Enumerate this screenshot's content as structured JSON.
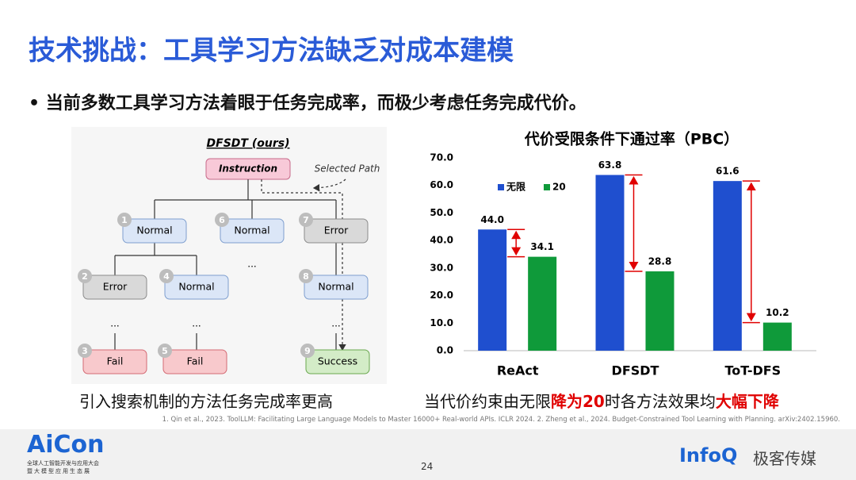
{
  "title": "技术挑战：工具学习方法缺乏对成本建模",
  "bullet": "当前多数工具学习方法着眼于任务完成率，而极少考虑任务完成代价。",
  "diagram": {
    "title": "DFSDT (ours)",
    "instruction": "Instruction",
    "selected_path": "Selected Path",
    "ellipsis": "...",
    "nodes": [
      {
        "number": 1,
        "label": "Normal"
      },
      {
        "number": 6,
        "label": "Normal"
      },
      {
        "number": 7,
        "label": "Error"
      },
      {
        "number": 2,
        "label": "Error"
      },
      {
        "number": 4,
        "label": "Normal"
      },
      {
        "number": 8,
        "label": "Normal"
      },
      {
        "number": 3,
        "label": "Fail"
      },
      {
        "number": 5,
        "label": "Fail"
      },
      {
        "number": 9,
        "label": "Success"
      }
    ]
  },
  "caption_left": "引入搜索机制的方法任务完成率更高",
  "chart_data": {
    "type": "bar",
    "title": "代价受限条件下通过率（PBC）",
    "categories": [
      "ReAct",
      "DFSDT",
      "ToT-DFS"
    ],
    "series": [
      {
        "name": "无限",
        "color": "#1f4fcf",
        "values": [
          44.0,
          63.8,
          61.6
        ],
        "value_labels": [
          "44.0",
          "63.8",
          "61.6"
        ]
      },
      {
        "name": "20",
        "color": "#0f9a3a",
        "values": [
          34.1,
          28.8,
          10.2
        ]
      }
    ],
    "ylim": [
      0,
      70
    ],
    "yticks": [
      {
        "value": 0,
        "label": "0.0"
      },
      {
        "value": 10,
        "label": "10.0"
      },
      {
        "value": 20,
        "label": "20.0"
      },
      {
        "value": 30,
        "label": "30.0"
      },
      {
        "value": 40,
        "label": "40.0"
      },
      {
        "value": 50,
        "label": "50.0"
      },
      {
        "value": 60,
        "label": "60.0"
      },
      {
        "value": 70,
        "label": "70.0"
      }
    ],
    "legend": "top-left",
    "grid": false
  },
  "caption_right": [
    "当代价约束由无限",
    "降为20",
    "时各方法效果均",
    "大幅下降"
  ],
  "reference": "1. Qin et al., 2023. ToolLLM: Facilitating Large Language Models to Master 16000+ Real-world APIs. ICLR 2024. 2. Zheng et al., 2024. Budget-Constrained Tool Learning with Planning. arXiv:2402.15960.",
  "footer": {
    "logo": "AiCon",
    "logo_sub1": "全球人工智能开发与应用大会",
    "logo_sub2": "暨大模型应用生态展",
    "page": 24,
    "brand": "InfoQ",
    "brand_cn": "极客传媒"
  }
}
